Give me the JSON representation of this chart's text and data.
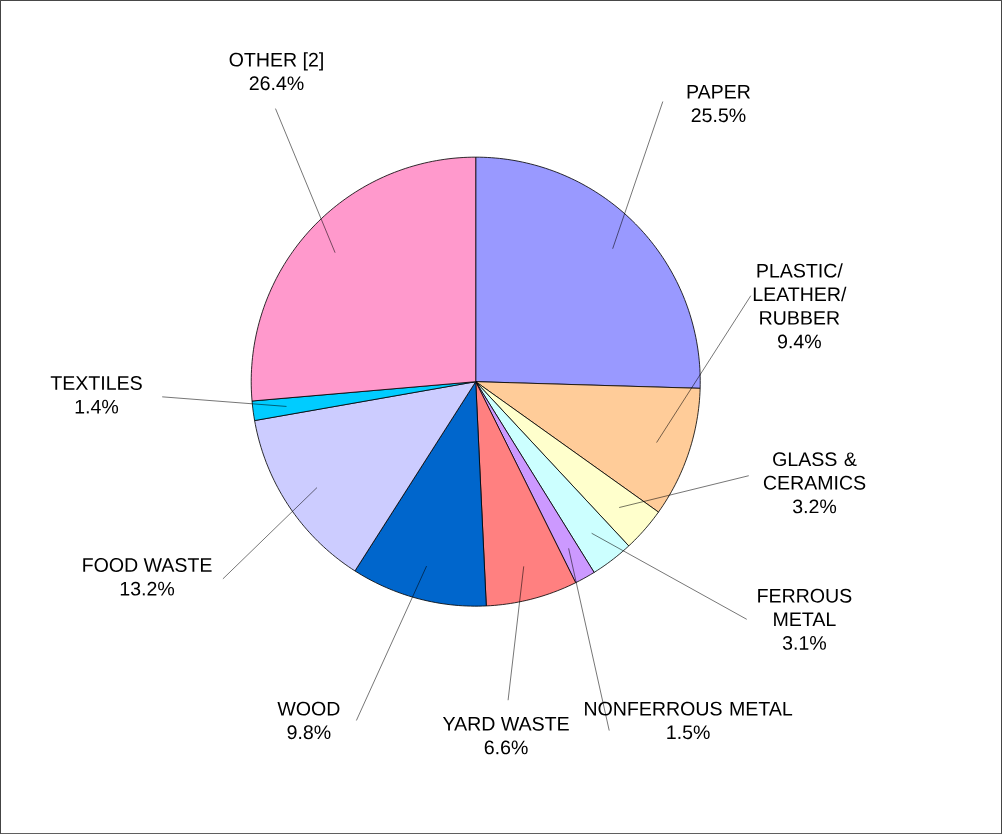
{
  "chart_data": {
    "type": "pie",
    "categories": [
      "PAPER",
      "PLASTIC/ LEATHER/ RUBBER",
      "GLASS & CERAMICS",
      "FERROUS METAL",
      "NONFERROUS METAL",
      "YARD WASTE",
      "WOOD",
      "FOOD WASTE",
      "TEXTILES",
      "OTHER [2]"
    ],
    "values": [
      25.5,
      9.4,
      3.2,
      3.1,
      1.5,
      6.6,
      9.8,
      13.2,
      1.4,
      26.4
    ],
    "colors": [
      "#9999ff",
      "#ffcc99",
      "#ffffcc",
      "#ccffff",
      "#cc99ff",
      "#ff8080",
      "#0066cc",
      "#ccccff",
      "#00ccff",
      "#ff99cc"
    ],
    "value_labels": [
      "25.5%",
      "9.4%",
      "3.2%",
      "3.1%",
      "1.5%",
      "6.6%",
      "9.8%",
      "13.2%",
      "1.4%",
      "26.4%"
    ]
  }
}
